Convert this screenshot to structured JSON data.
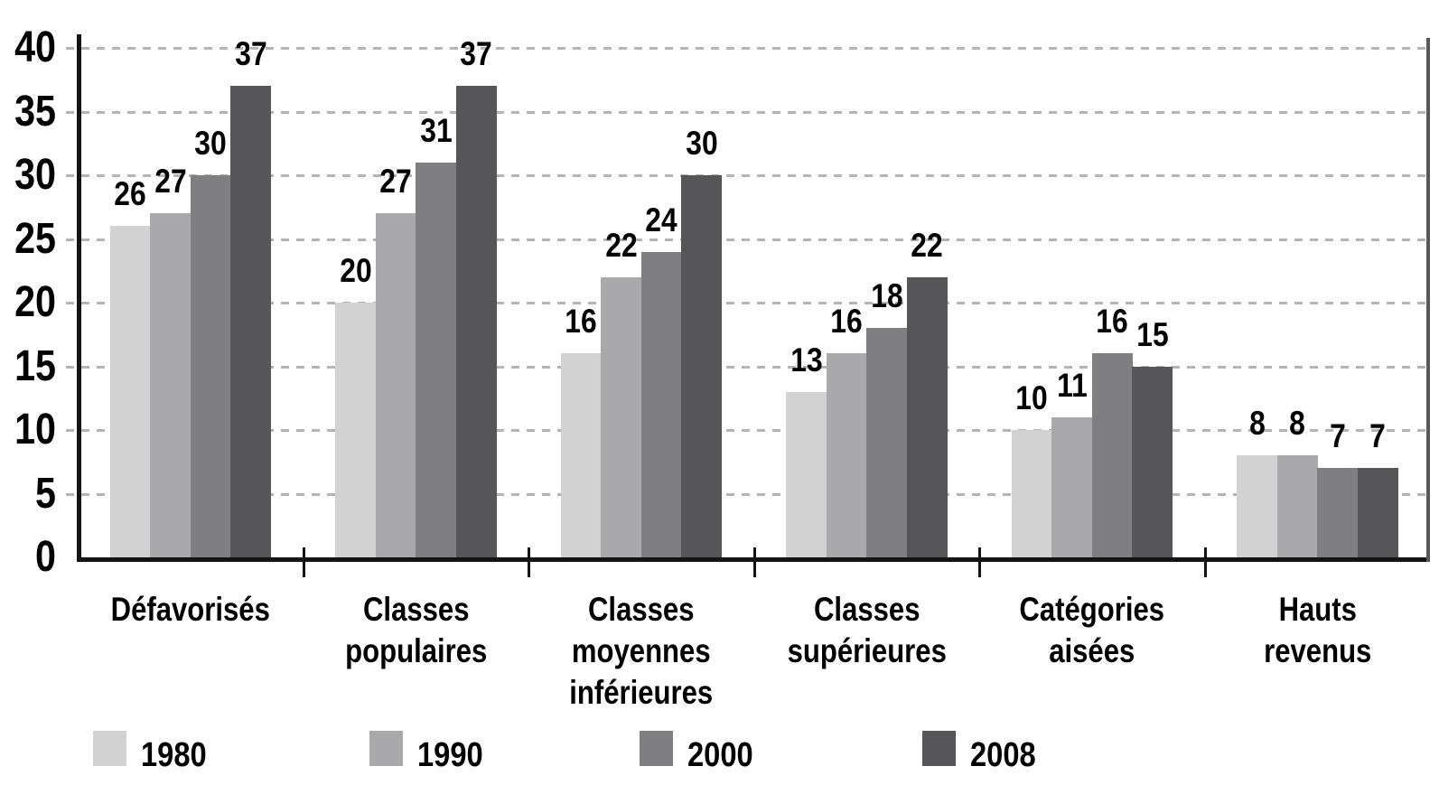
{
  "chart_data": {
    "type": "bar",
    "title": "",
    "xlabel": "",
    "ylabel": "",
    "categories": [
      {
        "lines": [
          "Défavorisés"
        ]
      },
      {
        "lines": [
          "Classes",
          "populaires"
        ]
      },
      {
        "lines": [
          "Classes",
          "moyennes",
          "inférieures"
        ]
      },
      {
        "lines": [
          "Classes",
          "supérieures"
        ]
      },
      {
        "lines": [
          "Catégories",
          "aisées"
        ]
      },
      {
        "lines": [
          "Hauts",
          "revenus"
        ]
      }
    ],
    "series": [
      {
        "name": "1980",
        "color": "#d2d2d3",
        "values": [
          26,
          20,
          16,
          13,
          10,
          8
        ]
      },
      {
        "name": "1990",
        "color": "#a9a9ab",
        "values": [
          27,
          27,
          22,
          16,
          11,
          8
        ]
      },
      {
        "name": "2000",
        "color": "#7f7f82",
        "values": [
          30,
          31,
          24,
          18,
          16,
          7
        ]
      },
      {
        "name": "2008",
        "color": "#565659",
        "values": [
          37,
          37,
          30,
          22,
          15,
          7
        ]
      }
    ],
    "bar_value_labels_shown": true,
    "ylim": [
      0,
      40
    ],
    "yticks": [
      0,
      5,
      10,
      15,
      20,
      25,
      30,
      35,
      40
    ],
    "grid": "horizontal-dashed",
    "legend_position": "bottom"
  },
  "style": {
    "background": "#ffffff",
    "axis_color": "#141414",
    "right_border_color": "#59595b",
    "gridline_color": "#b4b4b4",
    "text_color": "#000000"
  }
}
